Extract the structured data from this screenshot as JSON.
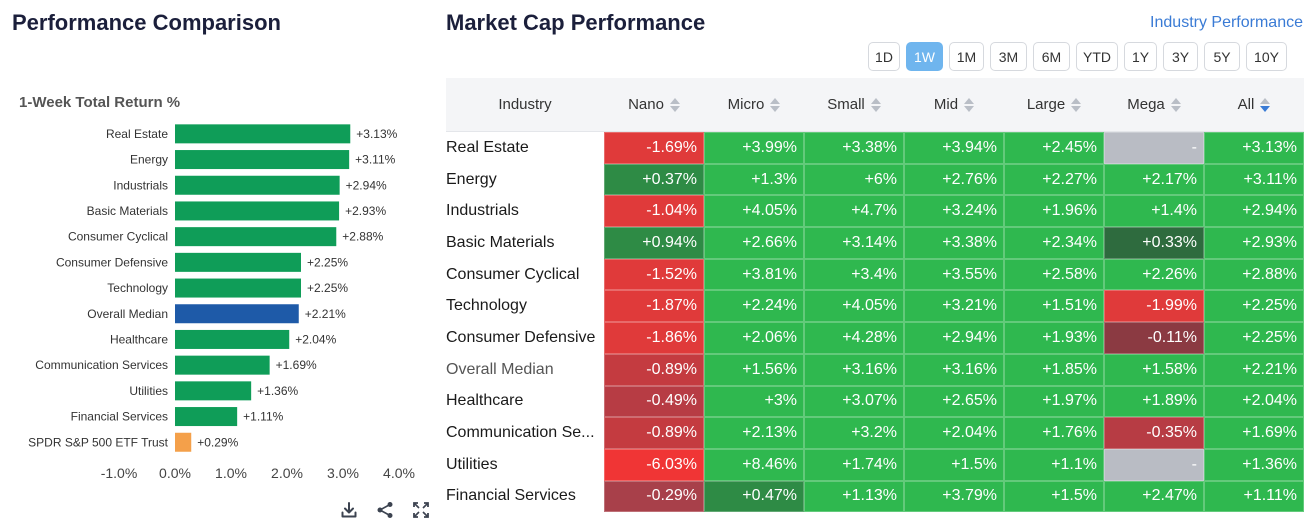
{
  "left": {
    "title": "Performance Comparison"
  },
  "right": {
    "title": "Market Cap Performance",
    "link": "Industry Performance"
  },
  "periods": [
    {
      "label": "1D",
      "active": false
    },
    {
      "label": "1W",
      "active": true
    },
    {
      "label": "1M",
      "active": false
    },
    {
      "label": "3M",
      "active": false
    },
    {
      "label": "6M",
      "active": false
    },
    {
      "label": "YTD",
      "active": false
    },
    {
      "label": "1Y",
      "active": false
    },
    {
      "label": "3Y",
      "active": false
    },
    {
      "label": "5Y",
      "active": false
    },
    {
      "label": "10Y",
      "active": false
    }
  ],
  "chart_data": {
    "type": "bar",
    "orientation": "horizontal",
    "title": "1-Week Total Return %",
    "categories": [
      "Real Estate",
      "Energy",
      "Industrials",
      "Basic Materials",
      "Consumer Cyclical",
      "Consumer Defensive",
      "Technology",
      "Overall Median",
      "Healthcare",
      "Communication Services",
      "Utilities",
      "Financial Services",
      "SPDR S&P 500 ETF Trust"
    ],
    "values": [
      3.13,
      3.11,
      2.94,
      2.93,
      2.88,
      2.25,
      2.25,
      2.21,
      2.04,
      1.69,
      1.36,
      1.11,
      0.29
    ],
    "value_labels": [
      "+3.13%",
      "+3.11%",
      "+2.94%",
      "+2.93%",
      "+2.88%",
      "+2.25%",
      "+2.25%",
      "+2.21%",
      "+2.04%",
      "+1.69%",
      "+1.36%",
      "+1.11%",
      "+0.29%"
    ],
    "bar_colors": [
      "#0f9d58",
      "#0f9d58",
      "#0f9d58",
      "#0f9d58",
      "#0f9d58",
      "#0f9d58",
      "#0f9d58",
      "#1e5aa8",
      "#0f9d58",
      "#0f9d58",
      "#0f9d58",
      "#0f9d58",
      "#f4a04a"
    ],
    "xlim": [
      -1.0,
      4.0
    ],
    "xticks": [
      -1.0,
      0.0,
      1.0,
      2.0,
      3.0,
      4.0
    ],
    "xtick_labels": [
      "-1.0%",
      "0.0%",
      "1.0%",
      "2.0%",
      "3.0%",
      "4.0%"
    ],
    "grid": false,
    "legend": "none"
  },
  "table": {
    "columns": [
      {
        "label": "Industry",
        "sortable": false,
        "active": false
      },
      {
        "label": "Nano",
        "sortable": true,
        "active": false
      },
      {
        "label": "Micro",
        "sortable": true,
        "active": false
      },
      {
        "label": "Small",
        "sortable": true,
        "active": false
      },
      {
        "label": "Mid",
        "sortable": true,
        "active": false
      },
      {
        "label": "Large",
        "sortable": true,
        "active": false
      },
      {
        "label": "Mega",
        "sortable": true,
        "active": false
      },
      {
        "label": "All",
        "sortable": true,
        "active": true
      }
    ],
    "rows": [
      {
        "name": "Real Estate",
        "muted": false,
        "values": [
          "-1.69%",
          "+3.99%",
          "+3.38%",
          "+3.94%",
          "+2.45%",
          "-",
          "+3.13%"
        ],
        "colors": [
          "#e03a3a",
          "#2fb84f",
          "#2fb84f",
          "#2fb84f",
          "#2fb84f",
          "#b9bcc4",
          "#2fb84f"
        ]
      },
      {
        "name": "Energy",
        "muted": false,
        "values": [
          "+0.37%",
          "+1.3%",
          "+6%",
          "+2.76%",
          "+2.27%",
          "+2.17%",
          "+3.11%"
        ],
        "colors": [
          "#2e8b45",
          "#2fb84f",
          "#2fb84f",
          "#2fb84f",
          "#2fb84f",
          "#2fb84f",
          "#2fb84f"
        ]
      },
      {
        "name": "Industrials",
        "muted": false,
        "values": [
          "-1.04%",
          "+4.05%",
          "+4.7%",
          "+3.24%",
          "+1.96%",
          "+1.4%",
          "+2.94%"
        ],
        "colors": [
          "#e03a3a",
          "#2fb84f",
          "#2fb84f",
          "#2fb84f",
          "#2fb84f",
          "#2fb84f",
          "#2fb84f"
        ]
      },
      {
        "name": "Basic Materials",
        "muted": false,
        "values": [
          "+0.94%",
          "+2.66%",
          "+3.14%",
          "+3.38%",
          "+2.34%",
          "+0.33%",
          "+2.93%"
        ],
        "colors": [
          "#2e8b45",
          "#2fb84f",
          "#2fb84f",
          "#2fb84f",
          "#2fb84f",
          "#2e6b3e",
          "#2fb84f"
        ]
      },
      {
        "name": "Consumer Cyclical",
        "muted": false,
        "values": [
          "-1.52%",
          "+3.81%",
          "+3.4%",
          "+3.55%",
          "+2.58%",
          "+2.26%",
          "+2.88%"
        ],
        "colors": [
          "#e03a3a",
          "#2fb84f",
          "#2fb84f",
          "#2fb84f",
          "#2fb84f",
          "#2fb84f",
          "#2fb84f"
        ]
      },
      {
        "name": "Technology",
        "muted": false,
        "values": [
          "-1.87%",
          "+2.24%",
          "+4.05%",
          "+3.21%",
          "+1.51%",
          "-1.99%",
          "+2.25%"
        ],
        "colors": [
          "#e03a3a",
          "#2fb84f",
          "#2fb84f",
          "#2fb84f",
          "#2fb84f",
          "#e03a3a",
          "#2fb84f"
        ]
      },
      {
        "name": "Consumer Defensive",
        "muted": false,
        "values": [
          "-1.86%",
          "+2.06%",
          "+4.28%",
          "+2.94%",
          "+1.93%",
          "-0.11%",
          "+2.25%"
        ],
        "colors": [
          "#e03a3a",
          "#2fb84f",
          "#2fb84f",
          "#2fb84f",
          "#2fb84f",
          "#8b3a42",
          "#2fb84f"
        ]
      },
      {
        "name": "Overall Median",
        "muted": true,
        "values": [
          "-0.89%",
          "+1.56%",
          "+3.16%",
          "+3.16%",
          "+1.85%",
          "+1.58%",
          "+2.21%"
        ],
        "colors": [
          "#c43b40",
          "#2fb84f",
          "#2fb84f",
          "#2fb84f",
          "#2fb84f",
          "#2fb84f",
          "#2fb84f"
        ]
      },
      {
        "name": "Healthcare",
        "muted": false,
        "values": [
          "-0.49%",
          "+3%",
          "+3.07%",
          "+2.65%",
          "+1.97%",
          "+1.89%",
          "+2.04%"
        ],
        "colors": [
          "#b73c44",
          "#2fb84f",
          "#2fb84f",
          "#2fb84f",
          "#2fb84f",
          "#2fb84f",
          "#2fb84f"
        ]
      },
      {
        "name": "Communication Se...",
        "muted": false,
        "values": [
          "-0.89%",
          "+2.13%",
          "+3.2%",
          "+2.04%",
          "+1.76%",
          "-0.35%",
          "+1.69%"
        ],
        "colors": [
          "#c43b40",
          "#2fb84f",
          "#2fb84f",
          "#2fb84f",
          "#2fb84f",
          "#b73c44",
          "#2fb84f"
        ]
      },
      {
        "name": "Utilities",
        "muted": false,
        "values": [
          "-6.03%",
          "+8.46%",
          "+1.74%",
          "+1.5%",
          "+1.1%",
          "-",
          "+1.36%"
        ],
        "colors": [
          "#f03535",
          "#2fb84f",
          "#2fb84f",
          "#2fb84f",
          "#2fb84f",
          "#b9bcc4",
          "#2fb84f"
        ]
      },
      {
        "name": "Financial Services",
        "muted": false,
        "values": [
          "-0.29%",
          "+0.47%",
          "+1.13%",
          "+3.79%",
          "+1.5%",
          "+2.47%",
          "+1.11%"
        ],
        "colors": [
          "#a8404a",
          "#2e8b45",
          "#2fb84f",
          "#2fb84f",
          "#2fb84f",
          "#2fb84f",
          "#2fb84f"
        ]
      }
    ]
  },
  "tools": [
    "download-icon",
    "share-icon",
    "fullscreen-icon"
  ]
}
